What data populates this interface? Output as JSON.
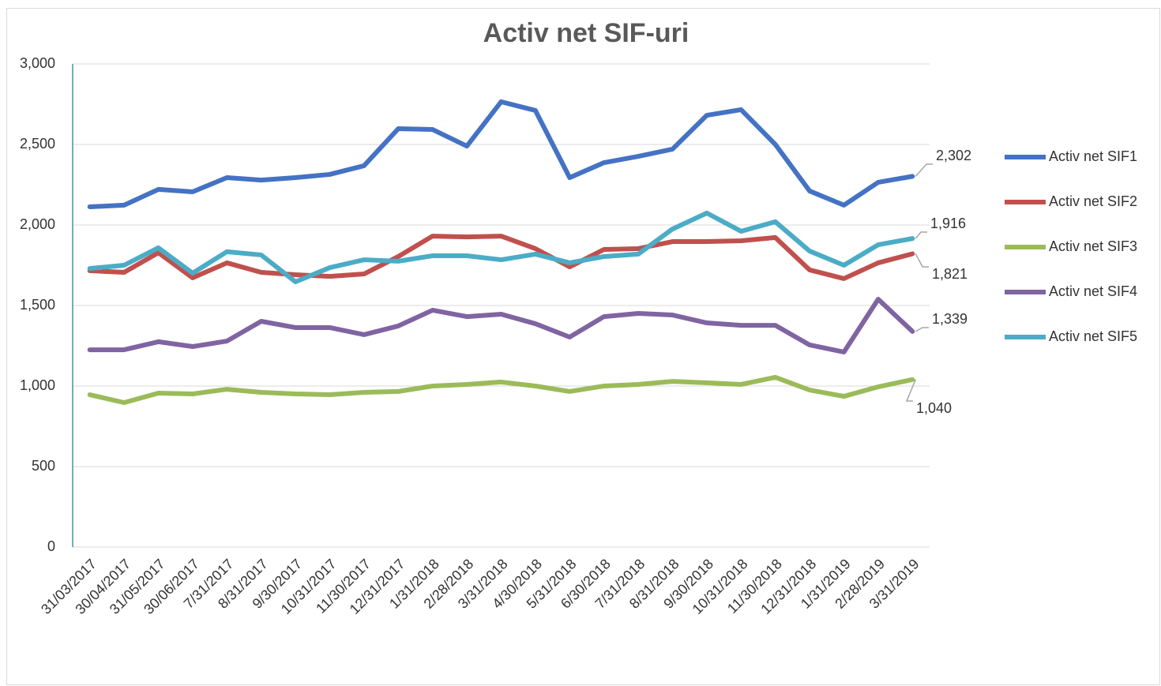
{
  "chart_data": {
    "type": "line",
    "title": "Activ net SIF-uri",
    "categories": [
      "31/03/2017",
      "30/04/2017",
      "31/05/2017",
      "30/06/2017",
      "7/31/2017",
      "8/31/2017",
      "9/30/2017",
      "10/31/2017",
      "11/30/2017",
      "12/31/2017",
      "1/31/2018",
      "2/28/2018",
      "3/31/2018",
      "4/30/2018",
      "5/31/2018",
      "6/30/2018",
      "7/31/2018",
      "8/31/2018",
      "9/30/2018",
      "10/31/2018",
      "11/30/2018",
      "12/31/2018",
      "1/31/2019",
      "2/28/2019",
      "3/31/2019"
    ],
    "series": [
      {
        "name": "Activ net SIF1",
        "color": "#4472c4",
        "values": [
          2113,
          2123,
          2221,
          2206,
          2294,
          2279,
          2294,
          2314,
          2368,
          2598,
          2593,
          2490,
          2765,
          2711,
          2294,
          2387,
          2426,
          2471,
          2681,
          2716,
          2500,
          2211,
          2123,
          2265,
          2302
        ],
        "value_labels": [
          null,
          null,
          null,
          null,
          null,
          null,
          null,
          null,
          null,
          null,
          null,
          null,
          null,
          null,
          null,
          null,
          null,
          null,
          null,
          null,
          null,
          null,
          null,
          null,
          "2,302"
        ]
      },
      {
        "name": "Activ net SIF2",
        "color": "#c0504d",
        "values": [
          1716,
          1706,
          1828,
          1672,
          1765,
          1706,
          1691,
          1681,
          1696,
          1804,
          1931,
          1926,
          1931,
          1853,
          1740,
          1848,
          1853,
          1897,
          1897,
          1902,
          1922,
          1721,
          1667,
          1765,
          1821
        ],
        "value_labels": [
          null,
          null,
          null,
          null,
          null,
          null,
          null,
          null,
          null,
          null,
          null,
          null,
          null,
          null,
          null,
          null,
          null,
          null,
          null,
          null,
          null,
          null,
          null,
          null,
          "1,821"
        ]
      },
      {
        "name": "Activ net SIF3",
        "color": "#9bbb59",
        "values": [
          946,
          897,
          956,
          951,
          980,
          961,
          951,
          946,
          961,
          966,
          1000,
          1010,
          1025,
          1000,
          966,
          1000,
          1010,
          1029,
          1020,
          1010,
          1054,
          975,
          936,
          995,
          1040
        ],
        "value_labels": [
          null,
          null,
          null,
          null,
          null,
          null,
          null,
          null,
          null,
          null,
          null,
          null,
          null,
          null,
          null,
          null,
          null,
          null,
          null,
          null,
          null,
          null,
          null,
          null,
          "1,040"
        ]
      },
      {
        "name": "Activ net SIF4",
        "color": "#8064a2",
        "values": [
          1225,
          1225,
          1275,
          1245,
          1279,
          1402,
          1363,
          1363,
          1319,
          1373,
          1471,
          1431,
          1446,
          1387,
          1304,
          1431,
          1451,
          1441,
          1392,
          1377,
          1377,
          1255,
          1211,
          1539,
          1339
        ],
        "value_labels": [
          null,
          null,
          null,
          null,
          null,
          null,
          null,
          null,
          null,
          null,
          null,
          null,
          null,
          null,
          null,
          null,
          null,
          null,
          null,
          null,
          null,
          null,
          null,
          null,
          "1,339"
        ]
      },
      {
        "name": "Activ net SIF5",
        "color": "#4bacc6",
        "values": [
          1730,
          1750,
          1858,
          1701,
          1834,
          1814,
          1647,
          1735,
          1784,
          1775,
          1809,
          1809,
          1784,
          1819,
          1765,
          1804,
          1819,
          1975,
          2074,
          1961,
          2020,
          1838,
          1750,
          1877,
          1916
        ],
        "value_labels": [
          null,
          null,
          null,
          null,
          null,
          null,
          null,
          null,
          null,
          null,
          null,
          null,
          null,
          null,
          null,
          null,
          null,
          null,
          null,
          null,
          null,
          null,
          null,
          null,
          "1,916"
        ]
      }
    ],
    "ylim": [
      0,
      3000
    ],
    "yticks": [
      0,
      500,
      {
        "value": 1000,
        "label": "1,000"
      },
      {
        "value": 1500,
        "label": "1,500"
      },
      {
        "value": 2000,
        "label": "2,000"
      },
      {
        "value": 2500,
        "label": "2,500"
      },
      {
        "value": 3000,
        "label": "3,000"
      }
    ],
    "grid": true,
    "legend": "right"
  }
}
